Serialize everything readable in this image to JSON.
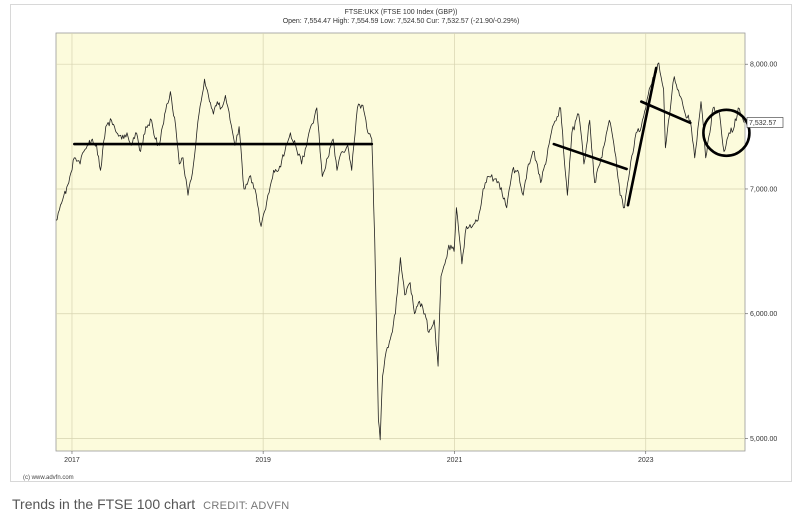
{
  "colors": {
    "plot_background": "#fcfbdc",
    "series_line": "#222222",
    "grid": "#d6d3b0",
    "trend_lines": "#000000"
  },
  "chart_data": {
    "type": "line",
    "title": "FTSE:UKX (FTSE 100 Index (GBP))",
    "subtitle": "Open: 7,554.47 High: 7,554.59 Low: 7,524.50 Cur: 7,532.57 (-21.90/-0.29%)",
    "xlabel": "",
    "ylabel": "",
    "x_ticks": [
      "2017",
      "2019",
      "2021",
      "2023"
    ],
    "y_ticks": [
      {
        "value": 8000,
        "label": "8,000.00"
      },
      {
        "value": 7000,
        "label": "7,000.00"
      },
      {
        "value": 6000,
        "label": "6,000.00"
      },
      {
        "value": 5000,
        "label": "5,000.00"
      }
    ],
    "ylim": [
      4900,
      8250
    ],
    "xlim": [
      "2016-11-01",
      "2024-01-15"
    ],
    "current_value_label": "7,532.57",
    "current_value": 7532.57,
    "grid": true,
    "series": [
      {
        "points": [
          [
            "2016-11-01",
            6750
          ],
          [
            "2016-12-01",
            6950
          ],
          [
            "2016-12-20",
            7050
          ],
          [
            "2017-01-10",
            7250
          ],
          [
            "2017-02-01",
            7200
          ],
          [
            "2017-02-15",
            7300
          ],
          [
            "2017-03-01",
            7350
          ],
          [
            "2017-03-20",
            7400
          ],
          [
            "2017-04-05",
            7350
          ],
          [
            "2017-04-20",
            7150
          ],
          [
            "2017-05-10",
            7500
          ],
          [
            "2017-06-01",
            7550
          ],
          [
            "2017-06-20",
            7450
          ],
          [
            "2017-07-10",
            7400
          ],
          [
            "2017-07-30",
            7450
          ],
          [
            "2017-08-15",
            7350
          ],
          [
            "2017-09-01",
            7450
          ],
          [
            "2017-09-20",
            7300
          ],
          [
            "2017-10-10",
            7500
          ],
          [
            "2017-11-01",
            7550
          ],
          [
            "2017-11-15",
            7400
          ],
          [
            "2017-12-01",
            7350
          ],
          [
            "2017-12-29",
            7680
          ],
          [
            "2018-01-12",
            7780
          ],
          [
            "2018-02-01",
            7500
          ],
          [
            "2018-02-15",
            7200
          ],
          [
            "2018-03-01",
            7250
          ],
          [
            "2018-03-20",
            6950
          ],
          [
            "2018-04-10",
            7200
          ],
          [
            "2018-05-01",
            7600
          ],
          [
            "2018-05-22",
            7880
          ],
          [
            "2018-06-10",
            7700
          ],
          [
            "2018-06-25",
            7600
          ],
          [
            "2018-07-10",
            7700
          ],
          [
            "2018-07-25",
            7650
          ],
          [
            "2018-08-10",
            7750
          ],
          [
            "2018-08-28",
            7550
          ],
          [
            "2018-09-15",
            7350
          ],
          [
            "2018-10-01",
            7500
          ],
          [
            "2018-10-20",
            7000
          ],
          [
            "2018-11-10",
            7100
          ],
          [
            "2018-12-01",
            7000
          ],
          [
            "2018-12-24",
            6700
          ],
          [
            "2019-01-15",
            6900
          ],
          [
            "2019-02-10",
            7150
          ],
          [
            "2019-03-01",
            7150
          ],
          [
            "2019-03-25",
            7300
          ],
          [
            "2019-04-15",
            7450
          ],
          [
            "2019-05-05",
            7350
          ],
          [
            "2019-05-28",
            7200
          ],
          [
            "2019-06-20",
            7400
          ],
          [
            "2019-07-25",
            7650
          ],
          [
            "2019-08-15",
            7100
          ],
          [
            "2019-09-05",
            7250
          ],
          [
            "2019-09-25",
            7400
          ],
          [
            "2019-10-10",
            7150
          ],
          [
            "2019-10-30",
            7300
          ],
          [
            "2019-11-20",
            7350
          ],
          [
            "2019-12-05",
            7150
          ],
          [
            "2019-12-27",
            7650
          ],
          [
            "2020-01-17",
            7670
          ],
          [
            "2020-02-05",
            7450
          ],
          [
            "2020-02-20",
            7400
          ],
          [
            "2020-03-02",
            6600
          ],
          [
            "2020-03-12",
            5600
          ],
          [
            "2020-03-16",
            5150
          ],
          [
            "2020-03-23",
            4990
          ],
          [
            "2020-04-01",
            5500
          ],
          [
            "2020-04-15",
            5700
          ],
          [
            "2020-05-01",
            5800
          ],
          [
            "2020-05-20",
            6000
          ],
          [
            "2020-06-08",
            6450
          ],
          [
            "2020-06-25",
            6150
          ],
          [
            "2020-07-15",
            6250
          ],
          [
            "2020-08-01",
            6000
          ],
          [
            "2020-08-20",
            6100
          ],
          [
            "2020-09-10",
            6000
          ],
          [
            "2020-09-25",
            5850
          ],
          [
            "2020-10-15",
            5950
          ],
          [
            "2020-10-30",
            5580
          ],
          [
            "2020-11-10",
            6300
          ],
          [
            "2020-11-25",
            6400
          ],
          [
            "2020-12-10",
            6550
          ],
          [
            "2020-12-30",
            6500
          ],
          [
            "2021-01-08",
            6850
          ],
          [
            "2021-01-29",
            6400
          ],
          [
            "2021-02-15",
            6700
          ],
          [
            "2021-03-10",
            6700
          ],
          [
            "2021-04-01",
            6750
          ],
          [
            "2021-04-20",
            7000
          ],
          [
            "2021-05-10",
            7100
          ],
          [
            "2021-06-01",
            7080
          ],
          [
            "2021-06-20",
            7050
          ],
          [
            "2021-07-19",
            6850
          ],
          [
            "2021-08-10",
            7150
          ],
          [
            "2021-08-30",
            7150
          ],
          [
            "2021-09-20",
            6950
          ],
          [
            "2021-10-10",
            7200
          ],
          [
            "2021-11-01",
            7300
          ],
          [
            "2021-11-26",
            7050
          ],
          [
            "2021-12-15",
            7200
          ],
          [
            "2022-01-10",
            7500
          ],
          [
            "2022-02-10",
            7650
          ],
          [
            "2022-02-25",
            7200
          ],
          [
            "2022-03-08",
            6950
          ],
          [
            "2022-03-25",
            7450
          ],
          [
            "2022-04-20",
            7600
          ],
          [
            "2022-05-10",
            7200
          ],
          [
            "2022-06-01",
            7550
          ],
          [
            "2022-06-20",
            7050
          ],
          [
            "2022-07-10",
            7200
          ],
          [
            "2022-08-15",
            7550
          ],
          [
            "2022-09-05",
            7300
          ],
          [
            "2022-09-25",
            6950
          ],
          [
            "2022-10-12",
            6850
          ],
          [
            "2022-11-01",
            7150
          ],
          [
            "2022-11-25",
            7450
          ],
          [
            "2022-12-15",
            7500
          ],
          [
            "2023-01-10",
            7750
          ],
          [
            "2023-02-02",
            7900
          ],
          [
            "2023-02-20",
            8010
          ],
          [
            "2023-03-10",
            7800
          ],
          [
            "2023-03-17",
            7330
          ],
          [
            "2023-04-10",
            7750
          ],
          [
            "2023-04-20",
            7900
          ],
          [
            "2023-05-10",
            7750
          ],
          [
            "2023-06-01",
            7600
          ],
          [
            "2023-06-20",
            7550
          ],
          [
            "2023-07-07",
            7250
          ],
          [
            "2023-07-31",
            7700
          ],
          [
            "2023-08-18",
            7250
          ],
          [
            "2023-09-15",
            7650
          ],
          [
            "2023-10-10",
            7600
          ],
          [
            "2023-10-27",
            7300
          ],
          [
            "2023-11-15",
            7450
          ],
          [
            "2023-12-05",
            7500
          ],
          [
            "2023-12-20",
            7650
          ],
          [
            "2024-01-12",
            7532
          ]
        ]
      }
    ],
    "annotations": [
      {
        "kind": "line",
        "from": [
          "2017-01-10",
          7360
        ],
        "to": [
          "2020-02-20",
          7360
        ]
      },
      {
        "kind": "line",
        "from": [
          "2022-01-15",
          7360
        ],
        "to": [
          "2022-10-20",
          7160
        ]
      },
      {
        "kind": "line",
        "from": [
          "2022-10-25",
          6870
        ],
        "to": [
          "2023-02-10",
          7970
        ]
      },
      {
        "kind": "line",
        "from": [
          "2022-12-15",
          7700
        ],
        "to": [
          "2023-06-20",
          7530
        ]
      },
      {
        "kind": "circle",
        "center": [
          "2023-11-05",
          7450
        ]
      }
    ]
  },
  "credit_small": "(c) www.advfn.com",
  "caption": "Trends in the FTSE 100 chart",
  "credit": "CREDIT: ADVFN"
}
